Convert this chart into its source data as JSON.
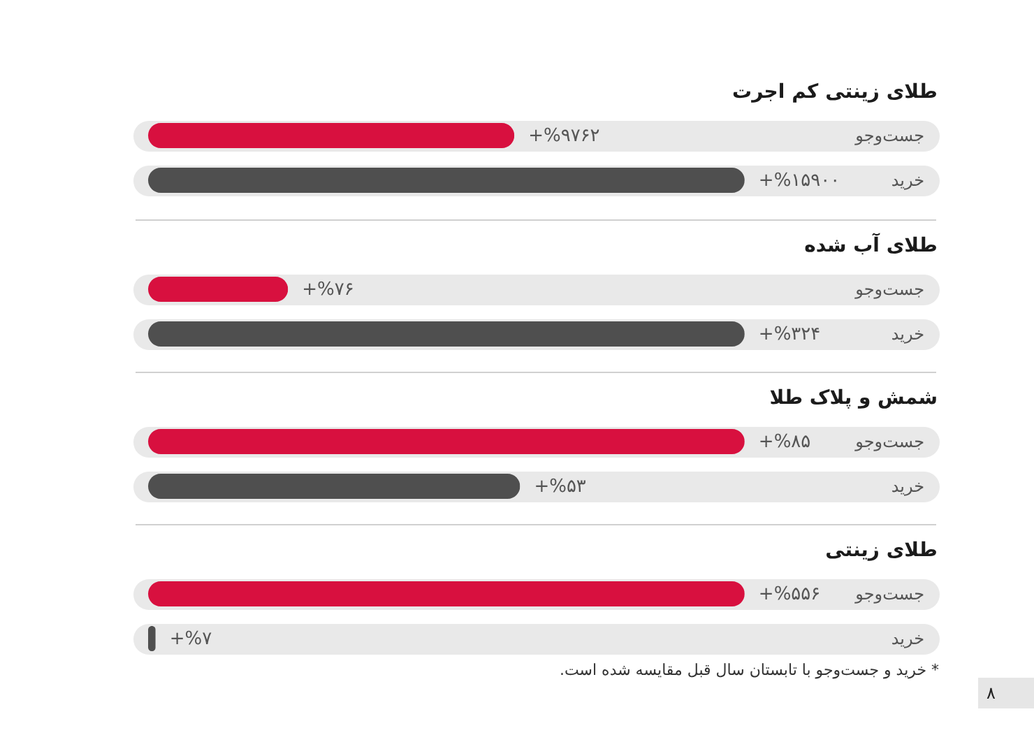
{
  "chart_data": [
    {
      "type": "bar",
      "orientation": "horizontal",
      "title": "طلای زینتی کم اجرت",
      "categories": [
        "جست‌وجو",
        "خرید"
      ],
      "values": [
        9762,
        15900
      ],
      "colors": [
        "#d8103f",
        "#4f4f4f"
      ],
      "value_labels": [
        "+%۹۷۶۲",
        "+%۱۵۹۰۰"
      ],
      "grid": "y",
      "tick_labels": "y"
    },
    {
      "type": "bar",
      "orientation": "horizontal",
      "title": "طلای آب شده",
      "categories": [
        "جست‌وجو",
        "خرید"
      ],
      "values": [
        76,
        324
      ],
      "colors": [
        "#d8103f",
        "#4f4f4f"
      ],
      "value_labels": [
        "+%۷۶",
        "+%۳۲۴"
      ],
      "grid": "y",
      "tick_labels": "y"
    },
    {
      "type": "bar",
      "orientation": "horizontal",
      "title": "شمش و پلاک طلا",
      "categories": [
        "جست‌وجو",
        "خرید"
      ],
      "values": [
        85,
        53
      ],
      "colors": [
        "#d8103f",
        "#4f4f4f"
      ],
      "value_labels": [
        "+%۸۵",
        "+%۵۳"
      ],
      "grid": "y",
      "tick_labels": "y"
    },
    {
      "type": "bar",
      "orientation": "horizontal",
      "title": "طلای زینتی",
      "categories": [
        "جست‌وجو",
        "خرید"
      ],
      "values": [
        556,
        7
      ],
      "colors": [
        "#d8103f",
        "#4f4f4f"
      ],
      "value_labels": [
        "+%۵۵۶",
        "+%۷"
      ],
      "grid": "y",
      "tick_labels": "y",
      "annotations": [
        "* خرید و جست‌وجو با تابستان سال قبل مقایسه شده است.",
        "۸"
      ]
    }
  ]
}
